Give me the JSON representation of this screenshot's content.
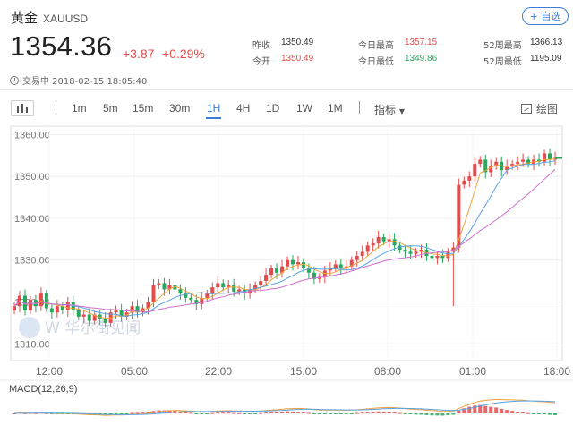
{
  "header": {
    "name": "黄金",
    "code": "XAUUSD",
    "add_button": "+ 自选",
    "price": "1354.36",
    "change": "+3.87",
    "change_pct": "+0.29%",
    "status": "交易中 2018-02-15 18:05:40"
  },
  "stats": {
    "prev_close_label": "昨收",
    "prev_close": "1350.49",
    "open_label": "今开",
    "open": "1350.49",
    "high_label": "今日最高",
    "high": "1357.15",
    "low_label": "今日最低",
    "low": "1349.86",
    "w52_high_label": "52周最高",
    "w52_high": "1366.13",
    "w52_low_label": "52周最低",
    "w52_low": "1195.09"
  },
  "toolbar": {
    "timeframes": [
      "1m",
      "5m",
      "15m",
      "30m",
      "1H",
      "4H",
      "1D",
      "1W",
      "1M"
    ],
    "active": "1H",
    "indicator_label": "指标",
    "draw_label": "绘图"
  },
  "colors": {
    "up": "#e44c4c",
    "down": "#28a85c",
    "accent": "#3b7dd8"
  },
  "chart_data": {
    "type": "candlestick",
    "ylim": [
      1306,
      1362
    ],
    "yticks": [
      "1360.00",
      "1350.00",
      "1340.00",
      "1330.00",
      "1320.00",
      "1310.00"
    ],
    "xticks": [
      "12:00",
      "05:00",
      "22:00",
      "15:00",
      "08:00",
      "01:00",
      "18:00"
    ],
    "closes": [
      1319,
      1321.5,
      1318,
      1320.5,
      1319,
      1322,
      1318.5,
      1317.5,
      1319,
      1318,
      1320,
      1318,
      1316.5,
      1317,
      1315.5,
      1317,
      1316,
      1315,
      1317.5,
      1318,
      1316.5,
      1317.5,
      1319,
      1317.5,
      1318.5,
      1320,
      1324,
      1324.5,
      1323,
      1324,
      1323,
      1322,
      1321,
      1320.5,
      1319.5,
      1321,
      1322,
      1323.5,
      1324.5,
      1323.5,
      1324,
      1322.5,
      1323,
      1322,
      1323,
      1324,
      1325,
      1326.5,
      1328,
      1327,
      1328.5,
      1330,
      1329,
      1329.5,
      1328,
      1327,
      1325.5,
      1326,
      1327.5,
      1328,
      1329,
      1328,
      1328.5,
      1330,
      1331,
      1332,
      1333.5,
      1334,
      1335.5,
      1334.5,
      1335,
      1333.5,
      1332.5,
      1332,
      1331.5,
      1332,
      1332.5,
      1331,
      1330.5,
      1331,
      1330.5,
      1332,
      1333,
      1348,
      1349,
      1350,
      1353,
      1354,
      1351,
      1352.5,
      1353.5,
      1351.5,
      1352.5,
      1353,
      1353.5,
      1354,
      1353,
      1354,
      1353.5,
      1355.5,
      1354,
      1354.4
    ],
    "highs_extra": {
      "83": 1350,
      "84": 1351
    },
    "long_low_index": 82,
    "long_low_value": 1319,
    "macd_label": "MACD(12,26,9)",
    "watermark": "W 华尔街见闻"
  }
}
